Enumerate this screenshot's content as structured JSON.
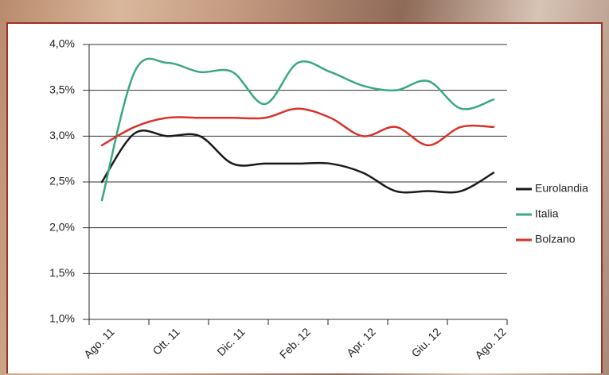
{
  "chart_data": {
    "type": "line",
    "categories": [
      "Ago. 11",
      null,
      "Ott. 11",
      null,
      "Dic. 11",
      null,
      "Feb. 12",
      null,
      "Apr. 12",
      null,
      "Giu. 12",
      null,
      "Ago. 12"
    ],
    "series": [
      {
        "name": "Eurolandia",
        "color": "#1a1a1a",
        "values": [
          2.5,
          3.03,
          3.0,
          3.0,
          2.7,
          2.7,
          2.7,
          2.7,
          2.6,
          2.4,
          2.4,
          2.4,
          2.6
        ]
      },
      {
        "name": "Italia",
        "color": "#3aa87e",
        "values": [
          2.3,
          3.7,
          3.8,
          3.7,
          3.7,
          3.35,
          3.8,
          3.7,
          3.55,
          3.5,
          3.6,
          3.3,
          3.4
        ]
      },
      {
        "name": "Bolzano",
        "color": "#d8322a",
        "values": [
          2.9,
          3.1,
          3.2,
          3.2,
          3.2,
          3.2,
          3.3,
          3.2,
          3.0,
          3.1,
          2.9,
          3.1,
          3.1
        ]
      }
    ],
    "ylim": [
      1.0,
      4.0
    ],
    "yticks": [
      {
        "value": 1.0,
        "label": "1,0%"
      },
      {
        "value": 1.5,
        "label": "1,5%"
      },
      {
        "value": 2.0,
        "label": "2,0%"
      },
      {
        "value": 2.5,
        "label": "2,5%"
      },
      {
        "value": 3.0,
        "label": "3,0%"
      },
      {
        "value": 3.5,
        "label": "3,5%"
      },
      {
        "value": 4.0,
        "label": "4,0%"
      }
    ],
    "grid": true
  }
}
